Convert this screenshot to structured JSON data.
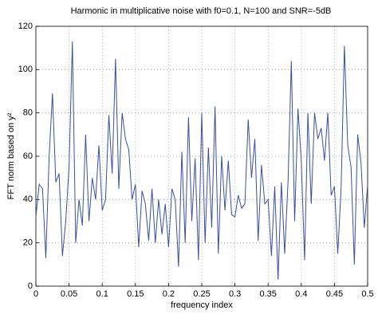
{
  "chart_data": {
    "type": "line",
    "title": "Harmonic in multiplicative noise with f0=0.1, N=100 and SNR=-5dB",
    "xlabel": "frequency index",
    "ylabel": "FFT norm based on y²",
    "x": [
      0,
      0.005,
      0.01,
      0.015,
      0.02,
      0.025,
      0.03,
      0.035,
      0.04,
      0.045,
      0.05,
      0.055,
      0.06,
      0.065,
      0.07,
      0.075,
      0.08,
      0.085,
      0.09,
      0.095,
      0.1,
      0.105,
      0.11,
      0.115,
      0.12,
      0.125,
      0.13,
      0.135,
      0.14,
      0.145,
      0.15,
      0.155,
      0.16,
      0.165,
      0.17,
      0.175,
      0.18,
      0.185,
      0.19,
      0.195,
      0.2,
      0.205,
      0.21,
      0.215,
      0.22,
      0.225,
      0.23,
      0.235,
      0.24,
      0.245,
      0.25,
      0.255,
      0.26,
      0.265,
      0.27,
      0.275,
      0.28,
      0.285,
      0.29,
      0.295,
      0.3,
      0.305,
      0.31,
      0.315,
      0.32,
      0.325,
      0.33,
      0.335,
      0.34,
      0.345,
      0.35,
      0.355,
      0.36,
      0.365,
      0.37,
      0.375,
      0.38,
      0.385,
      0.39,
      0.395,
      0.4,
      0.405,
      0.41,
      0.415,
      0.42,
      0.425,
      0.43,
      0.435,
      0.44,
      0.445,
      0.45,
      0.455,
      0.46,
      0.465,
      0.47,
      0.475,
      0.48,
      0.485,
      0.49,
      0.495,
      0.5
    ],
    "series": [
      {
        "color": "#3a4fa0",
        "values": [
          32,
          47,
          45,
          13,
          60,
          89,
          48,
          52,
          14,
          30,
          55,
          113,
          20,
          40,
          28,
          70,
          30,
          50,
          40,
          65,
          35,
          40,
          79,
          52,
          105,
          45,
          80,
          68,
          63,
          40,
          47,
          18,
          44,
          38,
          21,
          45,
          20,
          40,
          24,
          38,
          18,
          45,
          40,
          9,
          62,
          20,
          78,
          30,
          59,
          12,
          80,
          20,
          64,
          27,
          83,
          15,
          60,
          35,
          58,
          33,
          32,
          42,
          36,
          38,
          77,
          50,
          68,
          21,
          56,
          38,
          40,
          14,
          46,
          3,
          48,
          15,
          48,
          104,
          30,
          82,
          58,
          12,
          80,
          38,
          80,
          68,
          73,
          58,
          80,
          42,
          46,
          15,
          45,
          111,
          65,
          55,
          10,
          70,
          57,
          27,
          47
        ]
      }
    ],
    "xlim": [
      0,
      0.5
    ],
    "xticks": [
      0,
      0.05,
      0.1,
      0.15,
      0.2,
      0.25,
      0.3,
      0.35,
      0.4,
      0.45,
      0.5
    ],
    "ylim": [
      0,
      120
    ],
    "yticks": [
      0,
      20,
      40,
      60,
      80,
      100,
      120
    ],
    "grid": true
  }
}
